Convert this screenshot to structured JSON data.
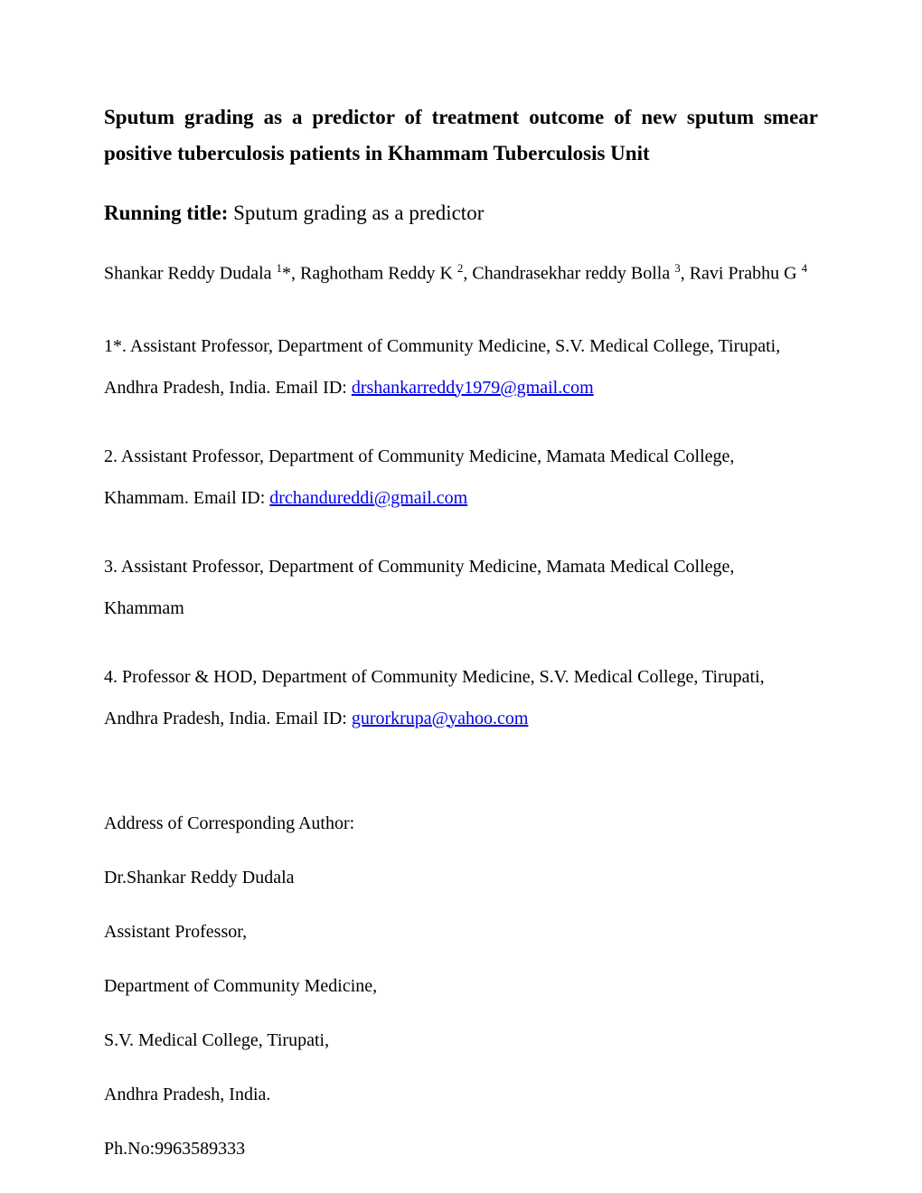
{
  "title": "Sputum grading as a predictor of treatment outcome of new sputum smear positive tuberculosis patients in Khammam Tuberculosis Unit",
  "running_title_label": "Running title: ",
  "running_title_value": "Sputum grading as a predictor",
  "authors": {
    "a1_name": "Shankar Reddy Dudala ",
    "a1_sup": "1",
    "a1_mark": "*, ",
    "a2_name": "Raghotham Reddy K ",
    "a2_sup": "2",
    "a2_sep": ", ",
    "a3_name": "Chandrasekhar reddy Bolla ",
    "a3_sup": "3",
    "a3_sep": ", ",
    "a4_name": "Ravi Prabhu G ",
    "a4_sup": "4"
  },
  "affiliations": {
    "aff1_text": "1*. Assistant Professor, Department of Community Medicine, S.V. Medical College, Tirupati, Andhra Pradesh, India. Email ID: ",
    "aff1_email": "drshankarreddy1979@gmail.com",
    "aff2_text": "2. Assistant Professor, Department of Community Medicine, Mamata Medical College, Khammam. Email ID: ",
    "aff2_email": "drchandureddi@gmail.com",
    "aff3_text": "3. Assistant Professor, Department of Community Medicine, Mamata Medical College, Khammam",
    "aff4_text": "4. Professor & HOD, Department of Community Medicine, S.V. Medical College, Tirupati, Andhra Pradesh, India. Email ID: ",
    "aff4_email": "gurorkrupa@yahoo.com"
  },
  "corresponding": {
    "label": "Address of Corresponding Author:",
    "name": "Dr.Shankar Reddy Dudala",
    "role": "Assistant Professor,",
    "department": "Department of Community Medicine,",
    "college": "S.V. Medical College, Tirupati,",
    "state": "Andhra Pradesh, India.",
    "phone": "Ph.No:9963589333"
  },
  "colors": {
    "background": "#ffffff",
    "text": "#000000",
    "link": "#0000ee"
  },
  "typography": {
    "font_family": "Times New Roman",
    "title_fontsize": 23,
    "body_fontsize": 20,
    "sup_fontsize": 13
  }
}
